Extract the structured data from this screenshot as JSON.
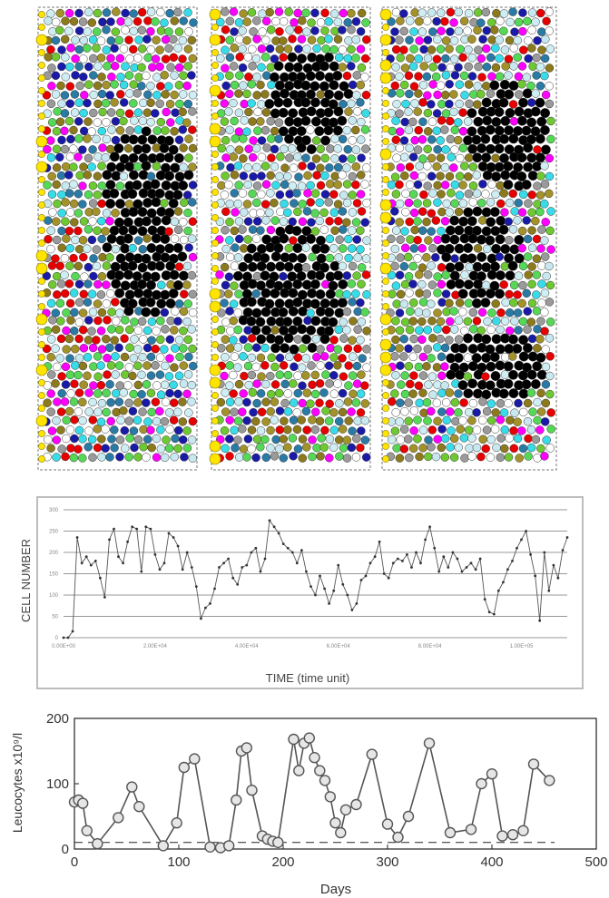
{
  "cell_panels": {
    "count": 3,
    "palette": [
      "#6ec832",
      "#55d855",
      "#38dce8",
      "#cfeef4",
      "#c8e8f0",
      "#8c7a1c",
      "#a3922a",
      "#9a9a9a",
      "#1a1aa8",
      "#ff00ff",
      "#e80000",
      "#2a7aa6",
      "#ffffff",
      "#ffe400"
    ],
    "differentiated_color": "#000000",
    "stem_color": "#ffe400"
  },
  "chart_data": [
    {
      "type": "line",
      "xlabel": "TIME (time unit)",
      "ylabel": "CELL NUMBER",
      "ylim": [
        0,
        300
      ],
      "yticks": [
        0,
        50,
        100,
        150,
        200,
        250,
        300
      ],
      "xlim": [
        0,
        110000
      ],
      "xtick_values": [
        0,
        20000,
        40000,
        60000,
        80000,
        100000
      ],
      "xtick_labels": [
        "0.00E+00",
        "2.00E+04",
        "4.00E+04",
        "6.00E+04",
        "8.00E+04",
        "1.00E+05"
      ],
      "grid": true,
      "x": [
        0,
        1000,
        2000,
        3000,
        4000,
        5000,
        6000,
        7000,
        8000,
        9000,
        10000,
        11000,
        12000,
        13000,
        14000,
        15000,
        16000,
        17000,
        18000,
        19000,
        20000,
        21000,
        22000,
        23000,
        24000,
        25000,
        26000,
        27000,
        28000,
        29000,
        30000,
        31000,
        32000,
        33000,
        34000,
        35000,
        36000,
        37000,
        38000,
        39000,
        40000,
        41000,
        42000,
        43000,
        44000,
        45000,
        46000,
        47000,
        48000,
        49000,
        50000,
        51000,
        52000,
        53000,
        54000,
        55000,
        56000,
        57000,
        58000,
        59000,
        60000,
        61000,
        62000,
        63000,
        64000,
        65000,
        66000,
        67000,
        68000,
        69000,
        70000,
        71000,
        72000,
        73000,
        74000,
        75000,
        76000,
        77000,
        78000,
        79000,
        80000,
        81000,
        82000,
        83000,
        84000,
        85000,
        86000,
        87000,
        88000,
        89000,
        90000,
        91000,
        92000,
        93000,
        94000,
        95000,
        96000,
        97000,
        98000,
        99000,
        100000,
        101000,
        102000,
        103000,
        104000,
        105000,
        106000,
        107000,
        108000,
        109000,
        110000
      ],
      "y": [
        0,
        0,
        15,
        235,
        175,
        190,
        170,
        180,
        140,
        95,
        230,
        255,
        190,
        175,
        225,
        260,
        255,
        155,
        260,
        255,
        195,
        160,
        175,
        245,
        235,
        215,
        160,
        200,
        165,
        120,
        45,
        70,
        80,
        115,
        165,
        175,
        185,
        140,
        125,
        165,
        170,
        200,
        210,
        155,
        185,
        275,
        260,
        245,
        220,
        210,
        200,
        175,
        205,
        155,
        120,
        100,
        145,
        115,
        80,
        110,
        170,
        125,
        100,
        65,
        80,
        135,
        145,
        175,
        190,
        225,
        150,
        140,
        175,
        185,
        180,
        195,
        165,
        200,
        175,
        230,
        260,
        210,
        155,
        190,
        165,
        200,
        185,
        155,
        165,
        175,
        160,
        185,
        90,
        60,
        55,
        110,
        130,
        160,
        180,
        210,
        230,
        250,
        195,
        145,
        40,
        200,
        110,
        170,
        140,
        205,
        235
      ],
      "marker": "dot",
      "color": "#555555"
    },
    {
      "type": "line",
      "xlabel": "Days",
      "ylabel": "Leucocytes x10⁹/l",
      "xlim": [
        0,
        500
      ],
      "ylim": [
        0,
        200
      ],
      "xticks": [
        0,
        100,
        200,
        300,
        400,
        500
      ],
      "yticks": [
        0,
        100,
        200
      ],
      "threshold": 10,
      "x": [
        0,
        4,
        8,
        12,
        22,
        42,
        55,
        62,
        85,
        98,
        105,
        115,
        130,
        140,
        148,
        155,
        160,
        165,
        170,
        180,
        185,
        190,
        195,
        210,
        215,
        220,
        225,
        230,
        235,
        240,
        245,
        250,
        255,
        260,
        270,
        285,
        300,
        310,
        320,
        340,
        360,
        380,
        390,
        400,
        410,
        420,
        430,
        440,
        455
      ],
      "y": [
        72,
        75,
        70,
        28,
        8,
        48,
        95,
        65,
        5,
        40,
        125,
        138,
        3,
        2,
        5,
        75,
        150,
        155,
        90,
        20,
        15,
        12,
        10,
        168,
        120,
        162,
        170,
        140,
        120,
        105,
        80,
        40,
        25,
        60,
        68,
        145,
        38,
        18,
        50,
        162,
        25,
        30,
        100,
        115,
        20,
        22,
        28,
        130,
        105
      ],
      "marker": "circle",
      "color": "#555555"
    }
  ]
}
